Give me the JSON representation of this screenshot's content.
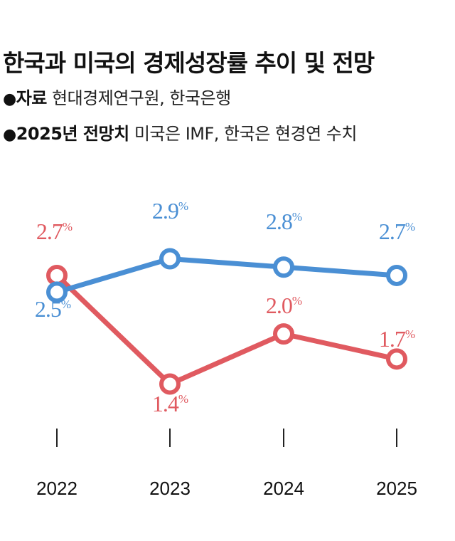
{
  "header": {
    "title": "한국과 미국의 경제성장률 추이 및 전망",
    "source_bullet": "●",
    "source_label": "자료",
    "source_value": "현대경제연구원, 한국은행",
    "forecast_bullet": "●",
    "forecast_label": "2025년 전망치",
    "forecast_value": "미국은 IMF, 한국은 현경연 수치"
  },
  "chart_data": {
    "type": "line",
    "categories": [
      "2022",
      "2023",
      "2024",
      "2025"
    ],
    "series": [
      {
        "values": [
          2.5,
          2.9,
          2.8,
          2.7
        ],
        "color": "#4a8fd4",
        "labels": [
          "2.5",
          "2.9",
          "2.8",
          "2.7"
        ]
      },
      {
        "values": [
          2.7,
          1.4,
          2.0,
          1.7
        ],
        "color": "#e05a60",
        "labels": [
          "2.7",
          "1.4",
          "2.0",
          "1.7"
        ]
      }
    ],
    "value_suffix": "%",
    "ylim": [
      1.2,
      3.1
    ],
    "grid": false,
    "legend": "none"
  }
}
